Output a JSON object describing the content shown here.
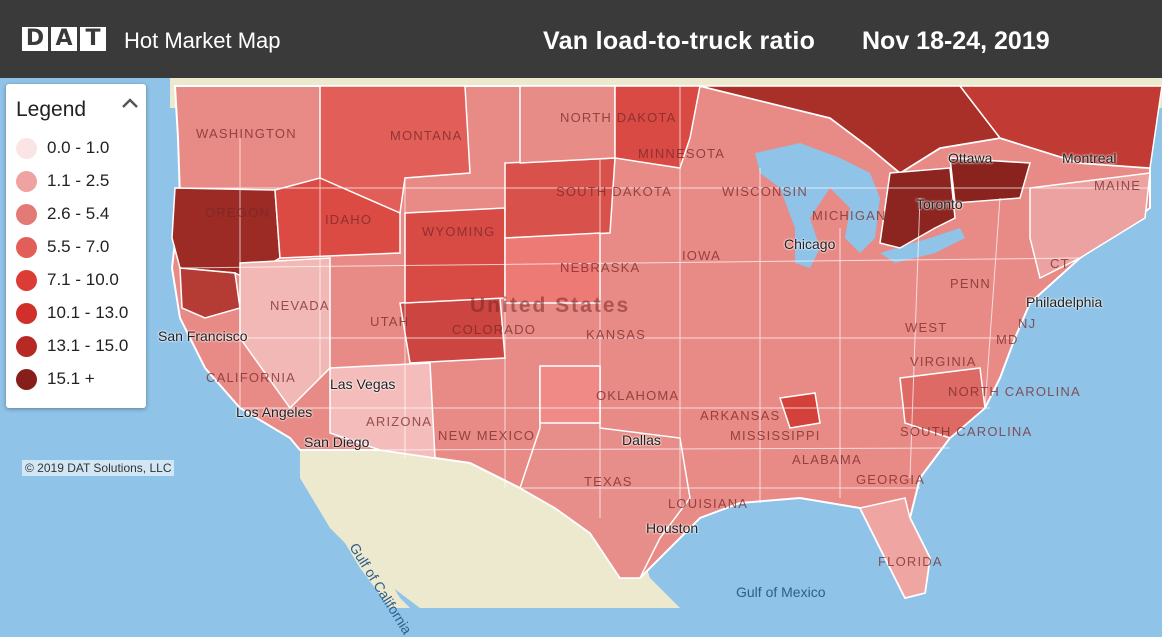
{
  "header": {
    "brand_letters": [
      "D",
      "A",
      "T"
    ],
    "app_title": "Hot Market Map",
    "map_title": "Van load-to-truck ratio",
    "date_range": "Nov 18-24, 2019"
  },
  "legend": {
    "title": "Legend",
    "toggle_icon": "chevron-up-icon",
    "items": [
      {
        "label": "0.0 - 1.0",
        "color": "#fbe4e4"
      },
      {
        "label": "1.1 - 2.5",
        "color": "#efa2a2"
      },
      {
        "label": "2.6 - 5.4",
        "color": "#e47a76"
      },
      {
        "label": "5.5 - 7.0",
        "color": "#e25e58"
      },
      {
        "label": "7.1 - 10.0",
        "color": "#db3d36"
      },
      {
        "label": "10.1 - 13.0",
        "color": "#d1302a"
      },
      {
        "label": "13.1 - 15.0",
        "color": "#b72924"
      },
      {
        "label": "15.1 +",
        "color": "#861e1a"
      }
    ]
  },
  "copyright": "© 2019 DAT Solutions, LLC",
  "map_labels": {
    "country": "United States",
    "states": [
      "WASHINGTON",
      "MONTANA",
      "NORTH DAKOTA",
      "MINNESOTA",
      "OREGON",
      "IDAHO",
      "SOUTH DAKOTA",
      "WYOMING",
      "WISCONSIN",
      "MICHIGAN",
      "NEBRASKA",
      "IOWA",
      "NEVADA",
      "UTAH",
      "COLORADO",
      "KANSAS",
      "CALIFORNIA",
      "ARIZONA",
      "NEW MEXICO",
      "OKLAHOMA",
      "TEXAS",
      "ARKANSAS",
      "MISSISSIPPI",
      "ALABAMA",
      "GEORGIA",
      "LOUISIANA",
      "FLORIDA",
      "MAINE",
      "NJ",
      "NORTH CAROLINA",
      "SOUTH CAROLINA",
      "VIRGINIA",
      "WEST",
      "PENN",
      "CT",
      "MD",
      "Ottawa",
      "Montreal"
    ],
    "cities": [
      "San Francisco",
      "Las Vegas",
      "Los Angeles",
      "San Diego",
      "Chicago",
      "Toronto",
      "Philadelphia",
      "Dallas",
      "Houston"
    ],
    "water": [
      "Gulf of California",
      "Gulf of Mexico"
    ]
  }
}
